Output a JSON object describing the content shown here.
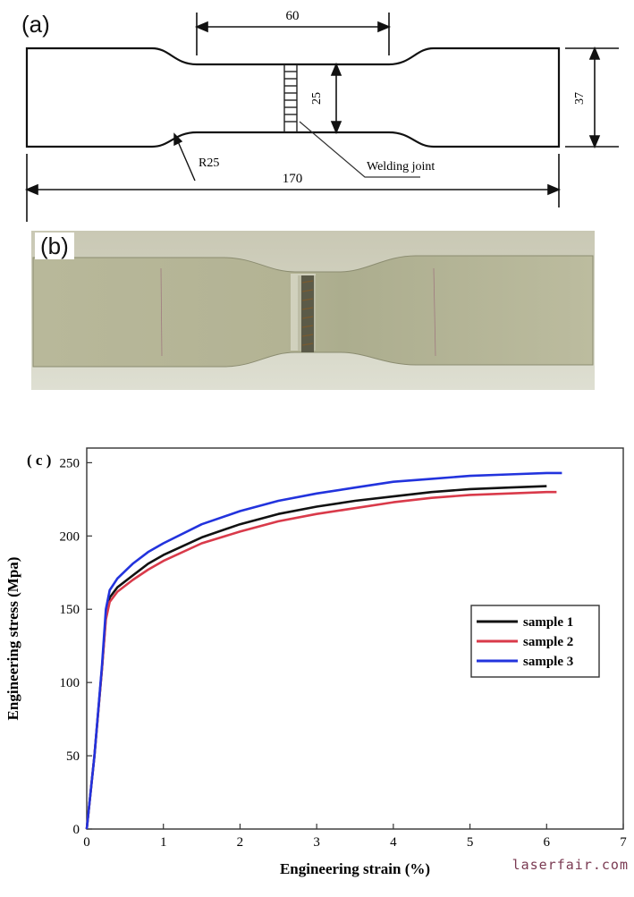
{
  "panel_a": {
    "label": "(a)",
    "dim_gauge_length": "60",
    "dim_gauge_width": "25",
    "dim_grip_width": "37",
    "dim_total_length": "170",
    "dim_radius": "R25",
    "callout_weld": "Welding joint"
  },
  "panel_b": {
    "label": "(b)"
  },
  "panel_c": {
    "label": "( c )"
  },
  "chart_data": {
    "type": "line",
    "title": "",
    "xlabel": "Engineering strain (%)",
    "ylabel": "Engineering stress (Mpa)",
    "xlim": [
      0,
      7
    ],
    "ylim": [
      0,
      260
    ],
    "xticks": [
      0,
      1,
      2,
      3,
      4,
      5,
      6,
      7
    ],
    "yticks": [
      0,
      50,
      100,
      150,
      200,
      250
    ],
    "legend_position": "right-middle",
    "grid": false,
    "series": [
      {
        "name": "sample 1",
        "color": "#111111",
        "points": [
          [
            0,
            0
          ],
          [
            0.1,
            50
          ],
          [
            0.2,
            110
          ],
          [
            0.25,
            145
          ],
          [
            0.3,
            158
          ],
          [
            0.4,
            165
          ],
          [
            0.6,
            173
          ],
          [
            0.8,
            181
          ],
          [
            1,
            187
          ],
          [
            1.5,
            199
          ],
          [
            2,
            208
          ],
          [
            2.5,
            215
          ],
          [
            3,
            220
          ],
          [
            3.5,
            224
          ],
          [
            4,
            227
          ],
          [
            4.5,
            230
          ],
          [
            5,
            232
          ],
          [
            5.5,
            233
          ],
          [
            6,
            234
          ]
        ]
      },
      {
        "name": "sample 2",
        "color": "#d93a4a",
        "points": [
          [
            0,
            0
          ],
          [
            0.1,
            50
          ],
          [
            0.2,
            110
          ],
          [
            0.25,
            143
          ],
          [
            0.3,
            155
          ],
          [
            0.4,
            162
          ],
          [
            0.6,
            170
          ],
          [
            0.8,
            177
          ],
          [
            1,
            183
          ],
          [
            1.5,
            195
          ],
          [
            2,
            203
          ],
          [
            2.5,
            210
          ],
          [
            3,
            215
          ],
          [
            3.5,
            219
          ],
          [
            4,
            223
          ],
          [
            4.5,
            226
          ],
          [
            5,
            228
          ],
          [
            5.5,
            229
          ],
          [
            6,
            230
          ],
          [
            6.13,
            230
          ]
        ]
      },
      {
        "name": "sample 3",
        "color": "#2233dd",
        "points": [
          [
            0,
            0
          ],
          [
            0.1,
            50
          ],
          [
            0.2,
            112
          ],
          [
            0.25,
            150
          ],
          [
            0.3,
            163
          ],
          [
            0.4,
            171
          ],
          [
            0.6,
            181
          ],
          [
            0.8,
            189
          ],
          [
            1,
            195
          ],
          [
            1.5,
            208
          ],
          [
            2,
            217
          ],
          [
            2.5,
            224
          ],
          [
            3,
            229
          ],
          [
            3.5,
            233
          ],
          [
            4,
            237
          ],
          [
            4.5,
            239
          ],
          [
            5,
            241
          ],
          [
            5.5,
            242
          ],
          [
            6,
            243
          ],
          [
            6.2,
            243
          ]
        ]
      }
    ]
  },
  "watermark": "laserfair.com"
}
